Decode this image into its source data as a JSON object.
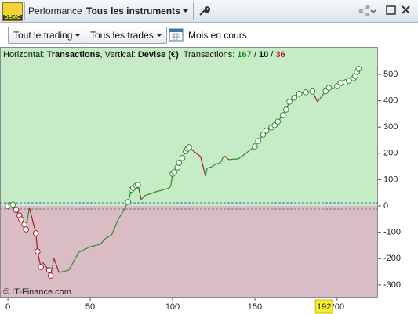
{
  "demo_badge": "DEMO",
  "tabs": {
    "performance": "Performance",
    "instruments": "Tous les instruments"
  },
  "toolbar": {
    "trading_filter": "Tout le trading",
    "trades_filter": "Tous les trades",
    "period": "Mois en cours"
  },
  "header": {
    "horizontal_label": "Horizontal:",
    "horizontal_value": "Transactions",
    "separator": ",",
    "vertical_label": "Vertical:",
    "vertical_value": "Devise (€)",
    "count_label": "Transactions:",
    "counts": [
      167,
      10,
      36
    ],
    "count_separator": "/"
  },
  "copyright": "© IT-Finance.com",
  "chart_data": {
    "type": "line",
    "x": [
      0,
      2,
      3,
      5,
      7,
      8,
      10,
      11,
      13,
      17,
      18,
      20,
      21,
      25,
      26,
      28,
      31,
      37,
      43,
      50,
      56,
      59,
      63,
      67,
      70,
      73,
      75,
      76,
      78,
      79,
      81,
      83,
      90,
      98,
      99,
      100,
      101,
      103,
      104,
      106,
      108,
      109,
      110,
      114,
      117,
      120,
      121,
      124,
      126,
      129,
      131,
      132,
      134,
      140,
      145,
      148,
      150,
      152,
      155,
      157,
      160,
      162,
      164,
      167,
      169,
      171,
      174,
      177,
      181,
      185,
      188,
      190,
      193,
      195,
      198,
      200,
      202,
      205,
      207,
      210,
      211,
      212,
      213
    ],
    "values": [
      0,
      3,
      5,
      -15,
      -36,
      -51,
      -71,
      -89,
      -6,
      -104,
      -173,
      -232,
      -214,
      -244,
      -265,
      -199,
      -253,
      -244,
      -176,
      -155,
      -146,
      -125,
      -110,
      -51,
      -21,
      15,
      62,
      68,
      77,
      80,
      24,
      39,
      54,
      68,
      78,
      122,
      128,
      146,
      164,
      182,
      208,
      217,
      223,
      202,
      188,
      113,
      143,
      149,
      158,
      164,
      188,
      189,
      176,
      179,
      202,
      217,
      226,
      247,
      271,
      286,
      298,
      307,
      321,
      345,
      366,
      396,
      411,
      426,
      432,
      435,
      396,
      411,
      436,
      449,
      446,
      455,
      467,
      470,
      476,
      485,
      494,
      509,
      521
    ],
    "up_color": "#2f8a2f",
    "down_color": "#9e2020",
    "xlim": [
      -4.8,
      224.8
    ],
    "ylim": [
      -348,
      604
    ],
    "xticks": [
      0,
      50,
      100,
      150,
      200
    ],
    "yticks": [
      -300,
      -200,
      -100,
      0,
      100,
      200,
      300,
      400,
      500
    ],
    "cursor_x": 192
  }
}
